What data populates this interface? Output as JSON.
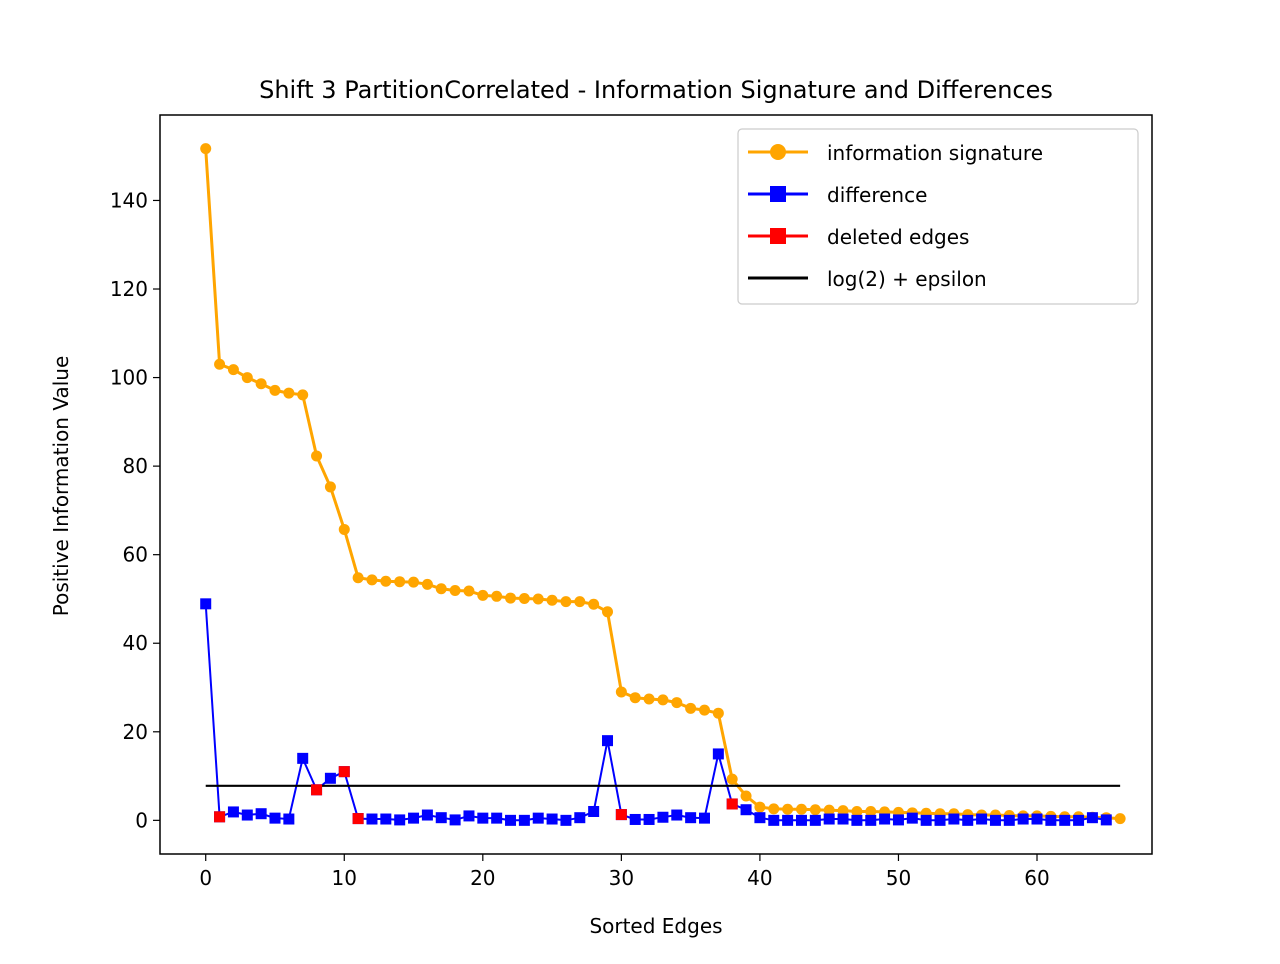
{
  "chart_data": {
    "type": "line",
    "title": "Shift 3 PartitionCorrelated - Information Signature and Differences",
    "xlabel": "Sorted Edges",
    "ylabel": "Positive Information Value",
    "xlim": [
      -3.3,
      68.3
    ],
    "ylim": [
      -7.6,
      159.3
    ],
    "xticks": [
      0,
      10,
      20,
      30,
      40,
      50,
      60
    ],
    "yticks": [
      0,
      20,
      40,
      60,
      80,
      100,
      120,
      140
    ],
    "grid": false,
    "legend_position": "upper right",
    "series": [
      {
        "name": "information signature",
        "color": "#FFA500",
        "marker": "circle",
        "x": [
          0,
          1,
          2,
          3,
          4,
          5,
          6,
          7,
          8,
          9,
          10,
          11,
          12,
          13,
          14,
          15,
          16,
          17,
          18,
          19,
          20,
          21,
          22,
          23,
          24,
          25,
          26,
          27,
          28,
          29,
          30,
          31,
          32,
          33,
          34,
          35,
          36,
          37,
          38,
          39,
          40,
          41,
          42,
          43,
          44,
          45,
          46,
          47,
          48,
          49,
          50,
          51,
          52,
          53,
          54,
          55,
          56,
          57,
          58,
          59,
          60,
          61,
          62,
          63,
          64,
          65,
          66
        ],
        "y": [
          151.7,
          103.0,
          101.8,
          100.0,
          98.6,
          97.1,
          96.5,
          96.1,
          82.3,
          75.3,
          65.7,
          54.8,
          54.3,
          54.0,
          53.9,
          53.8,
          53.3,
          52.3,
          51.9,
          51.8,
          50.8,
          50.6,
          50.2,
          50.1,
          50.0,
          49.7,
          49.4,
          49.4,
          48.8,
          47.1,
          29.0,
          27.7,
          27.4,
          27.2,
          26.6,
          25.3,
          24.9,
          24.2,
          9.3,
          5.5,
          3.0,
          2.6,
          2.5,
          2.5,
          2.4,
          2.3,
          2.2,
          2.0,
          2.0,
          1.9,
          1.8,
          1.7,
          1.6,
          1.5,
          1.5,
          1.3,
          1.2,
          1.2,
          1.1,
          1.0,
          1.0,
          0.9,
          0.8,
          0.8,
          0.7,
          0.6,
          0.4
        ]
      },
      {
        "name": "difference",
        "color": "#0000FF",
        "marker": "square",
        "x": [
          0,
          1,
          2,
          3,
          4,
          5,
          6,
          7,
          8,
          9,
          10,
          11,
          12,
          13,
          14,
          15,
          16,
          17,
          18,
          19,
          20,
          21,
          22,
          23,
          24,
          25,
          26,
          27,
          28,
          29,
          30,
          31,
          32,
          33,
          34,
          35,
          36,
          37,
          38,
          39,
          40,
          41,
          42,
          43,
          44,
          45,
          46,
          47,
          48,
          49,
          50,
          51,
          52,
          53,
          54,
          55,
          56,
          57,
          58,
          59,
          60,
          61,
          62,
          63,
          64,
          65
        ],
        "y": [
          48.9,
          0.8,
          1.9,
          1.2,
          1.5,
          0.5,
          0.3,
          14.0,
          6.9,
          9.5,
          11.0,
          0.4,
          0.3,
          0.3,
          0.1,
          0.5,
          1.2,
          0.6,
          0.1,
          1.0,
          0.5,
          0.5,
          0.0,
          0.0,
          0.5,
          0.3,
          0.0,
          0.6,
          2.0,
          18.0,
          1.3,
          0.2,
          0.2,
          0.7,
          1.2,
          0.6,
          0.5,
          15.0,
          3.7,
          2.4,
          0.6,
          0.0,
          0.0,
          0.0,
          0.0,
          0.3,
          0.3,
          0.0,
          0.0,
          0.3,
          0.1,
          0.5,
          0.0,
          0.0,
          0.3,
          0.0,
          0.3,
          0.0,
          0.0,
          0.3,
          0.3,
          0.0,
          0.0,
          0.0,
          0.6,
          0.1
        ]
      },
      {
        "name": "deleted edges",
        "color": "#FF0000",
        "marker": "square",
        "x": [
          1,
          8,
          10,
          11,
          30,
          38
        ],
        "y": [
          0.8,
          6.9,
          11.0,
          0.4,
          1.3,
          3.7
        ]
      },
      {
        "name": "log(2) + epsilon",
        "color": "#000000",
        "marker": "none",
        "x": [
          0,
          66
        ],
        "y": [
          7.8,
          7.8
        ]
      }
    ]
  }
}
